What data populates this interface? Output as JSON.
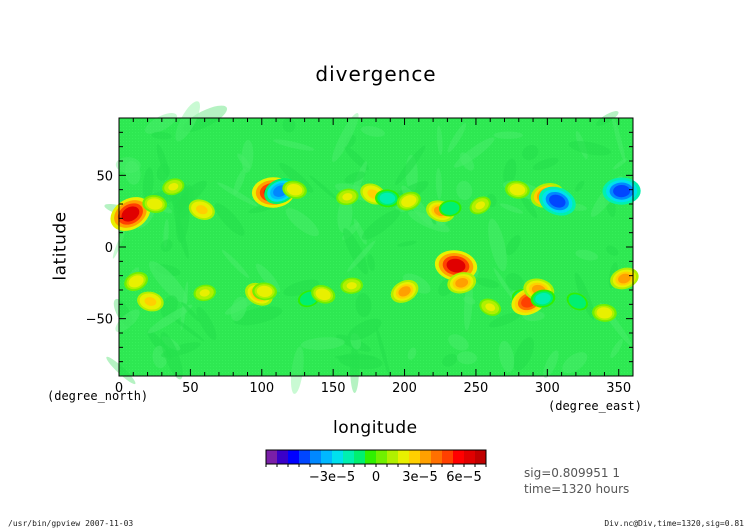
{
  "chart_data": {
    "type": "heatmap",
    "title": "divergence",
    "xlabel": "longitude",
    "ylabel": "latitude",
    "xunit": "(degree_east)",
    "yunit": "(degree_north)",
    "xlim": [
      0,
      360
    ],
    "ylim": [
      -90,
      90
    ],
    "xticks": [
      0,
      50,
      100,
      150,
      200,
      250,
      300,
      350
    ],
    "yticks": [
      -50,
      0,
      50
    ],
    "background_value": 0,
    "features": [
      {
        "lon": 8,
        "lat": 23,
        "value": 6e-05
      },
      {
        "lon": 25,
        "lat": 30,
        "value": 2e-05
      },
      {
        "lon": 38,
        "lat": 42,
        "value": 1.5e-05
      },
      {
        "lon": 58,
        "lat": 26,
        "value": 2.5e-05
      },
      {
        "lon": 108,
        "lat": 38,
        "value": 6e-05
      },
      {
        "lon": 113,
        "lat": 39,
        "value": -4e-05
      },
      {
        "lon": 123,
        "lat": 40,
        "value": 2e-05
      },
      {
        "lon": 160,
        "lat": 35,
        "value": 1.5e-05
      },
      {
        "lon": 178,
        "lat": 37,
        "value": 2.5e-05
      },
      {
        "lon": 188,
        "lat": 34,
        "value": -2e-05
      },
      {
        "lon": 203,
        "lat": 32,
        "value": 2e-05
      },
      {
        "lon": 225,
        "lat": 25,
        "value": 3e-05
      },
      {
        "lon": 232,
        "lat": 27,
        "value": -1.5e-05
      },
      {
        "lon": 253,
        "lat": 29,
        "value": 1.5e-05
      },
      {
        "lon": 279,
        "lat": 40,
        "value": 2e-05
      },
      {
        "lon": 300,
        "lat": 36,
        "value": 4e-05
      },
      {
        "lon": 307,
        "lat": 32,
        "value": -5e-05
      },
      {
        "lon": 352,
        "lat": 39,
        "value": -5e-05
      },
      {
        "lon": 12,
        "lat": -24,
        "value": 2e-05
      },
      {
        "lon": 22,
        "lat": -38,
        "value": 2.5e-05
      },
      {
        "lon": 60,
        "lat": -32,
        "value": 1.5e-05
      },
      {
        "lon": 98,
        "lat": -33,
        "value": 3e-05
      },
      {
        "lon": 102,
        "lat": -31,
        "value": 2e-05
      },
      {
        "lon": 133,
        "lat": -36,
        "value": -1.5e-05
      },
      {
        "lon": 143,
        "lat": -33,
        "value": 2e-05
      },
      {
        "lon": 163,
        "lat": -27,
        "value": 1.5e-05
      },
      {
        "lon": 200,
        "lat": -31,
        "value": 3e-05
      },
      {
        "lon": 236,
        "lat": -13,
        "value": 6e-05
      },
      {
        "lon": 240,
        "lat": -25,
        "value": 3e-05
      },
      {
        "lon": 260,
        "lat": -42,
        "value": 1.5e-05
      },
      {
        "lon": 283,
        "lat": -35,
        "value": -1.5e-05
      },
      {
        "lon": 287,
        "lat": -38,
        "value": 4.5e-05
      },
      {
        "lon": 294,
        "lat": -30,
        "value": 3.5e-05
      },
      {
        "lon": 297,
        "lat": -36,
        "value": -2e-05
      },
      {
        "lon": 321,
        "lat": -38,
        "value": -1.5e-05
      },
      {
        "lon": 340,
        "lat": -46,
        "value": 2e-05
      },
      {
        "lon": 354,
        "lat": -22,
        "value": 3e-05
      }
    ],
    "colorbar": {
      "min": -7.5e-05,
      "max": 7.5e-05,
      "tick_values": [
        -3e-05,
        0,
        3e-05,
        6e-05
      ],
      "tick_labels": [
        "−3e−5",
        "0",
        "3e−5",
        "6e−5"
      ],
      "colors": [
        "#7a1fa8",
        "#3a00c8",
        "#0000ff",
        "#0046ff",
        "#0088ff",
        "#00b8ff",
        "#00e0ee",
        "#00f0b0",
        "#00f070",
        "#30f000",
        "#70f000",
        "#b0f000",
        "#e8f000",
        "#ffd000",
        "#ffa000",
        "#ff7000",
        "#ff4000",
        "#ff0000",
        "#e00000",
        "#c00000"
      ]
    }
  },
  "info": {
    "sig_line": "sig=0.809951 1",
    "time_line": "time=1320 hours"
  },
  "footer": {
    "left": "/usr/bin/gpview  2007-11-03",
    "right": "Div.nc@Div,time=1320,sig=0.81"
  }
}
